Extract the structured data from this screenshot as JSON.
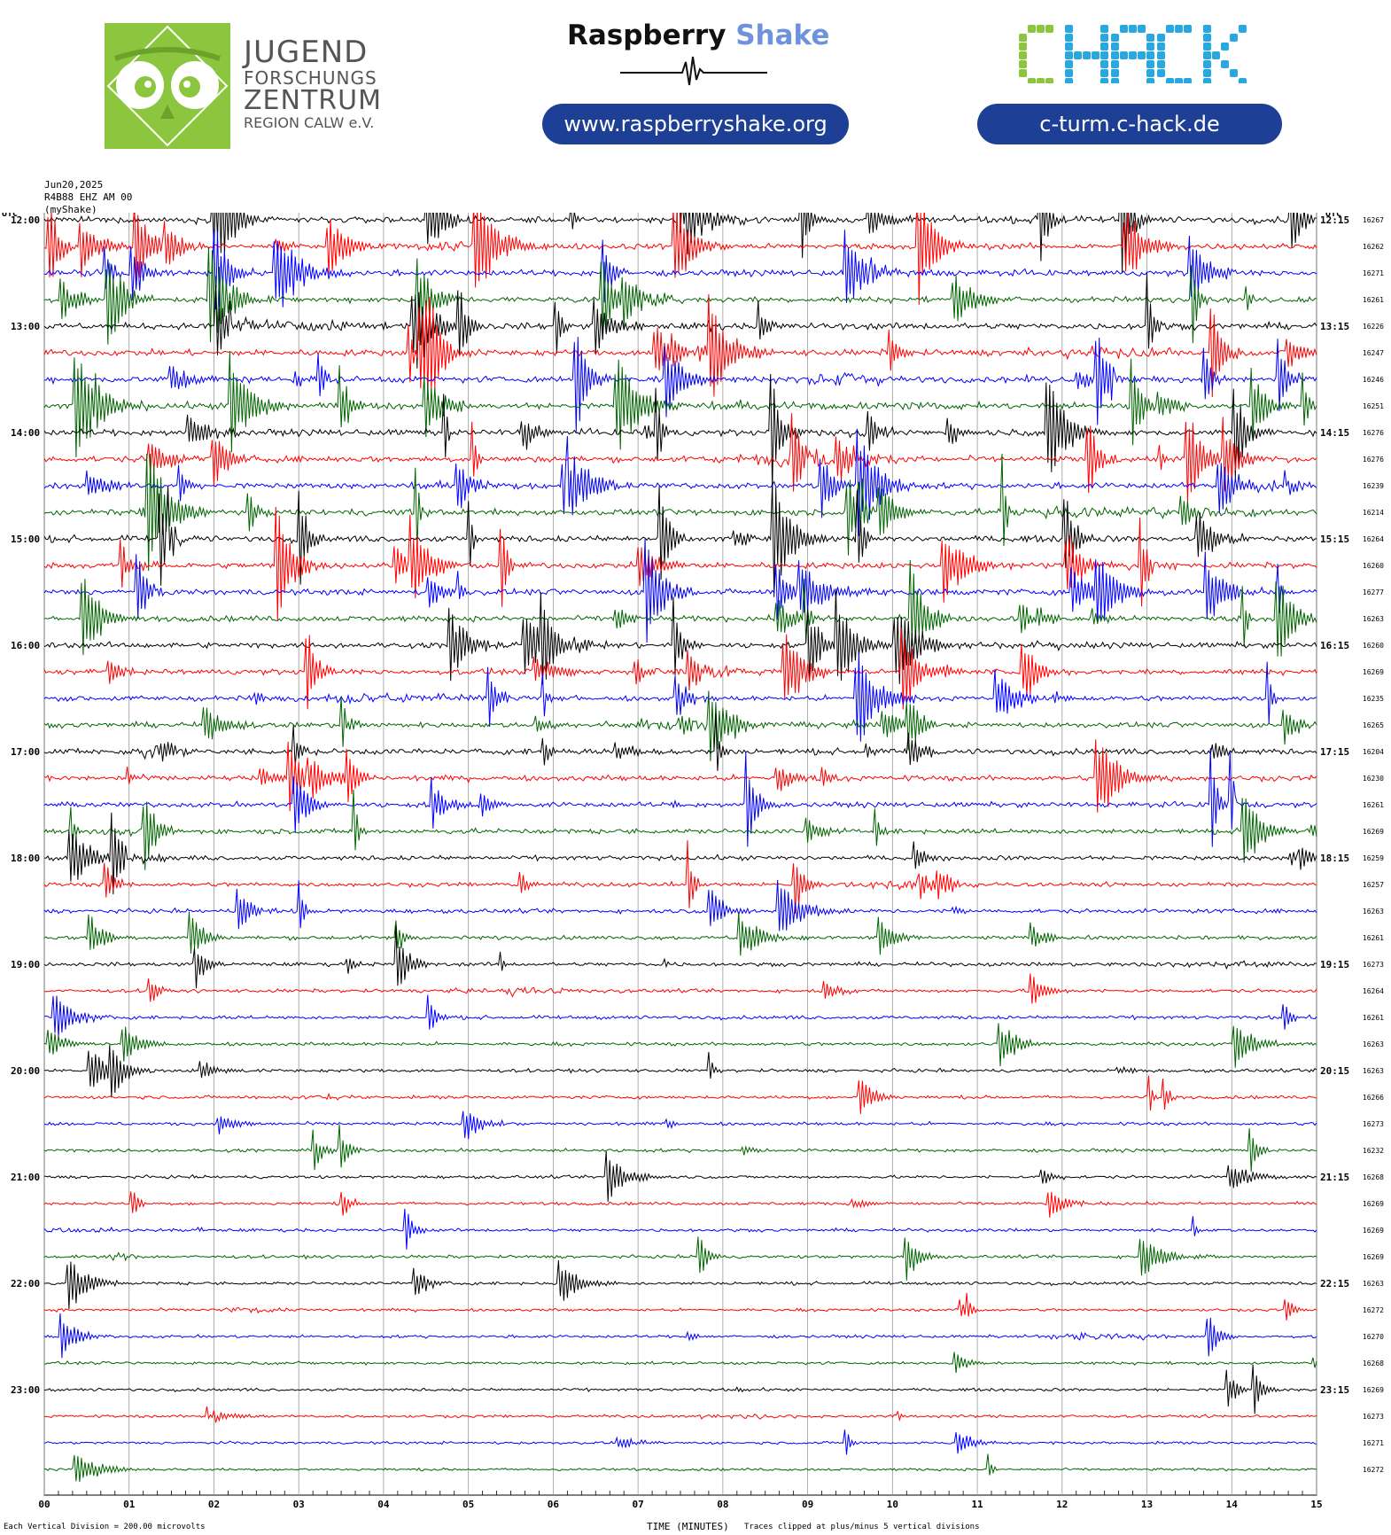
{
  "header": {
    "logo_left": {
      "line1": "JUGEND",
      "line2": "FORSCHUNGS",
      "line3": "ZENTRUM",
      "line4": "REGION CALW e.V."
    },
    "raspberry": {
      "word1": "Raspberry",
      "word2": "Shake",
      "url": "www.raspberryshake.org"
    },
    "chack": {
      "logo_text": "CHACK",
      "url": "c-turm.c-hack.de"
    }
  },
  "meta": {
    "date": "Jun20,2025",
    "station": "R4B88 EHZ AM 00",
    "network": "(myShake)"
  },
  "footer": {
    "scale_note": "Each Vertical Division = 200.00 microvolts",
    "xaxis_title": "TIME (MINUTES)",
    "clip_note": "Traces clipped at plus/minus 5 vertical divisions"
  },
  "chart_data": {
    "type": "line",
    "title": "",
    "xlabel": "TIME (MINUTES)",
    "x_ticks": [
      "00",
      "01",
      "02",
      "03",
      "04",
      "05",
      "06",
      "07",
      "08",
      "09",
      "10",
      "11",
      "12",
      "13",
      "14",
      "15"
    ],
    "xlim": [
      0,
      15
    ],
    "left_axis_label": "UTC",
    "right_axis_label": "UTC",
    "dc_label": "DC",
    "left_hour_labels": [
      "12:00",
      "13:00",
      "14:00",
      "15:00",
      "16:00",
      "17:00",
      "18:00",
      "19:00",
      "20:00",
      "21:00",
      "22:00",
      "23:00"
    ],
    "right_hour_labels": [
      "12:15",
      "13:15",
      "14:15",
      "15:15",
      "16:15",
      "17:15",
      "18:15",
      "19:15",
      "20:15",
      "21:15",
      "22:15",
      "23:15"
    ],
    "trace_colors": [
      "#000000",
      "#ff0000",
      "#0000ff",
      "#006400"
    ],
    "grid": true,
    "traces_per_hour": 4,
    "trace_minutes": 15,
    "dc_offsets": [
      16267,
      16262,
      16271,
      16261,
      16226,
      16247,
      16246,
      16251,
      16276,
      16276,
      16239,
      16214,
      16264,
      16260,
      16277,
      16263,
      16260,
      16269,
      16235,
      16265,
      16204,
      16230,
      16261,
      16269,
      16259,
      16257,
      16263,
      16261,
      16273,
      16264,
      16261,
      16263,
      16263,
      16266,
      16273,
      16232,
      16268,
      16269,
      16269,
      16269,
      16263,
      16272,
      16270,
      16268,
      16269,
      16273,
      16271,
      16272
    ],
    "activity_level": [
      1.0,
      0.9,
      0.9,
      0.85,
      1.0,
      1.0,
      1.0,
      1.0,
      1.0,
      0.95,
      0.9,
      0.95,
      0.95,
      0.9,
      0.9,
      0.85,
      0.8,
      0.8,
      0.75,
      0.75,
      0.85,
      0.8,
      0.7,
      0.7,
      0.6,
      0.5,
      0.5,
      0.45,
      0.4,
      0.35,
      0.35,
      0.35,
      0.3,
      0.3,
      0.3,
      0.3,
      0.25,
      0.25,
      0.25,
      0.25,
      0.25,
      0.2,
      0.2,
      0.2,
      0.2,
      0.2,
      0.15,
      0.15
    ]
  }
}
